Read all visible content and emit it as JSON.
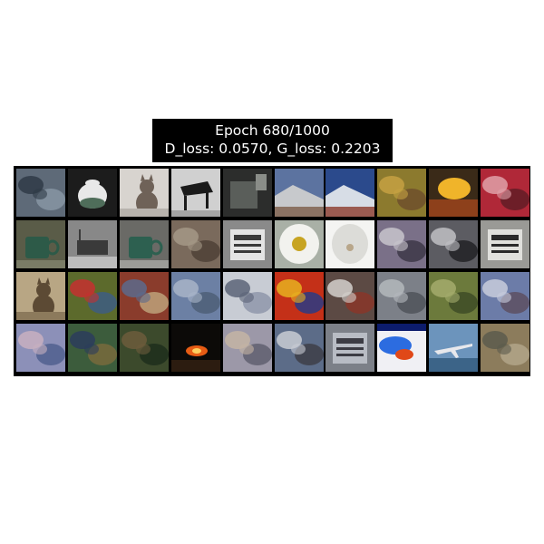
{
  "figure": {
    "title_line1": "Epoch 680/1000",
    "title_line2": "D_loss: 0.0570, G_loss: 0.2203"
  },
  "grid": {
    "rows": 4,
    "cols": 10,
    "tiles": [
      {
        "name": "sample-r1-c1",
        "c1": "#5e6a78",
        "c2": "#2f3a46",
        "c3": "#8a98a6",
        "shape": "blotch"
      },
      {
        "name": "sample-r1-c2",
        "c1": "#1c1c1c",
        "c2": "#e8e8e8",
        "c3": "#4f6d5a",
        "shape": "teapot"
      },
      {
        "name": "sample-r1-c3",
        "c1": "#b8b3ad",
        "c2": "#6f6258",
        "c3": "#d8d4cf",
        "shape": "cat-sitting"
      },
      {
        "name": "sample-r1-c4",
        "c1": "#a4a4a4",
        "c2": "#1a1a1a",
        "c3": "#d0d0d0",
        "shape": "piano"
      },
      {
        "name": "sample-r1-c5",
        "c1": "#2c2d2c",
        "c2": "#5a5e5a",
        "c3": "#8a8d88",
        "shape": "dark-object"
      },
      {
        "name": "sample-r1-c6",
        "c1": "#5c73a0",
        "c2": "#c7c9cc",
        "c3": "#7c5c48",
        "shape": "scene"
      },
      {
        "name": "sample-r1-c7",
        "c1": "#2b4a8c",
        "c2": "#d7dde6",
        "c3": "#8c3b2c",
        "shape": "scene"
      },
      {
        "name": "sample-r1-c8",
        "c1": "#8c7a2e",
        "c2": "#c5a142",
        "c3": "#6d4e2c",
        "shape": "blotch"
      },
      {
        "name": "sample-r1-c9",
        "c1": "#3a2a18",
        "c2": "#f0b42a",
        "c3": "#b04a1c",
        "shape": "sunset"
      },
      {
        "name": "sample-r1-c10",
        "c1": "#b02838",
        "c2": "#e0a0a8",
        "c3": "#5c1c24",
        "shape": "blotch"
      },
      {
        "name": "sample-r2-c1",
        "c1": "#5a5c48",
        "c2": "#2d5a48",
        "c3": "#7a7c66",
        "shape": "mug"
      },
      {
        "name": "sample-r2-c2",
        "c1": "#888888",
        "c2": "#3a3a3a",
        "c3": "#bcbcbc",
        "shape": "cart"
      },
      {
        "name": "sample-r2-c3",
        "c1": "#6a6a66",
        "c2": "#2d6050",
        "c3": "#9c9c98",
        "shape": "mug"
      },
      {
        "name": "sample-r2-c4",
        "c1": "#7a6a5c",
        "c2": "#a49886",
        "c3": "#4c3e34",
        "shape": "blotch"
      },
      {
        "name": "sample-r2-c5",
        "c1": "#e4e4e4",
        "c2": "#3a3a3a",
        "c3": "#8a8a8a",
        "shape": "machine"
      },
      {
        "name": "sample-r2-c6",
        "c1": "#f2f2ee",
        "c2": "#c7a422",
        "c3": "#a9b0a6",
        "shape": "flower"
      },
      {
        "name": "sample-r2-c7",
        "c1": "#dcdcd8",
        "c2": "#b8a68a",
        "c3": "#f4f4f2",
        "shape": "flower-white"
      },
      {
        "name": "sample-r2-c8",
        "c1": "#7a7088",
        "c2": "#c8c4cc",
        "c3": "#3a3444",
        "shape": "blotch"
      },
      {
        "name": "sample-r2-c9",
        "c1": "#5c5c62",
        "c2": "#c0c0c4",
        "c3": "#1e1e22",
        "shape": "blotch"
      },
      {
        "name": "sample-r2-c10",
        "c1": "#e0e0dc",
        "c2": "#2a2a2a",
        "c3": "#9a9a96",
        "shape": "machine"
      },
      {
        "name": "sample-r3-c1",
        "c1": "#8c7a5c",
        "c2": "#5c4a34",
        "c3": "#b8a684",
        "shape": "cat-sitting"
      },
      {
        "name": "sample-r3-c2",
        "c1": "#5c6a2c",
        "c2": "#c43030",
        "c3": "#3c5c88",
        "shape": "blotch"
      },
      {
        "name": "sample-r3-c3",
        "c1": "#8a3c2c",
        "c2": "#5c6a8c",
        "c3": "#c0a880",
        "shape": "blotch"
      },
      {
        "name": "sample-r3-c4",
        "c1": "#6c80a4",
        "c2": "#a8b4c8",
        "c3": "#4c5c74",
        "shape": "blotch"
      },
      {
        "name": "sample-r3-c5",
        "c1": "#c8ccd4",
        "c2": "#5c6478",
        "c3": "#8c94a8",
        "shape": "blotch"
      },
      {
        "name": "sample-r3-c6",
        "c1": "#c43018",
        "c2": "#e8b020",
        "c3": "#203c8c",
        "shape": "blotch"
      },
      {
        "name": "sample-r3-c7",
        "c1": "#5c4a44",
        "c2": "#d4d0cc",
        "c3": "#8c3428",
        "shape": "blotch"
      },
      {
        "name": "sample-r3-c8",
        "c1": "#7c8088",
        "c2": "#b4b8bc",
        "c3": "#4c5058",
        "shape": "blotch"
      },
      {
        "name": "sample-r3-c9",
        "c1": "#6c7a3c",
        "c2": "#a4ac6c",
        "c3": "#3c4a24",
        "shape": "blotch"
      },
      {
        "name": "sample-r3-c10",
        "c1": "#6c7ca8",
        "c2": "#c8ccdc",
        "c3": "#5c4c5c",
        "shape": "blotch"
      },
      {
        "name": "sample-r4-c1",
        "c1": "#8c90b8",
        "c2": "#c8b0c0",
        "c3": "#4c5c8c",
        "shape": "blotch"
      },
      {
        "name": "sample-r4-c2",
        "c1": "#3c5c3c",
        "c2": "#2c3c5c",
        "c3": "#7c6c3c",
        "shape": "blotch"
      },
      {
        "name": "sample-r4-c3",
        "c1": "#3c4a2c",
        "c2": "#6c5c3c",
        "c3": "#1c2c1c",
        "shape": "blotch"
      },
      {
        "name": "sample-r4-c4",
        "c1": "#0c0a08",
        "c2": "#e85c14",
        "c3": "#2c1c10",
        "shape": "fire"
      },
      {
        "name": "sample-r4-c5",
        "c1": "#9c98a8",
        "c2": "#c4b4a4",
        "c3": "#5c5c6c",
        "shape": "blotch"
      },
      {
        "name": "sample-r4-c6",
        "c1": "#5c6c88",
        "c2": "#c8ccd4",
        "c3": "#3c3c44",
        "shape": "blotch"
      },
      {
        "name": "sample-r4-c7",
        "c1": "#b8bcc4",
        "c2": "#3c3c44",
        "c3": "#7c8088",
        "shape": "machine"
      },
      {
        "name": "sample-r4-c8",
        "c1": "#f0f0f4",
        "c2": "#2c6ce0",
        "c3": "#e04818",
        "shape": "bright"
      },
      {
        "name": "sample-r4-c9",
        "c1": "#6c94bc",
        "c2": "#3c6488",
        "c3": "#e8e8ec",
        "shape": "airplane"
      },
      {
        "name": "sample-r4-c10",
        "c1": "#8c7c5c",
        "c2": "#5c5c4c",
        "c3": "#b4a88c",
        "shape": "blotch"
      }
    ]
  }
}
